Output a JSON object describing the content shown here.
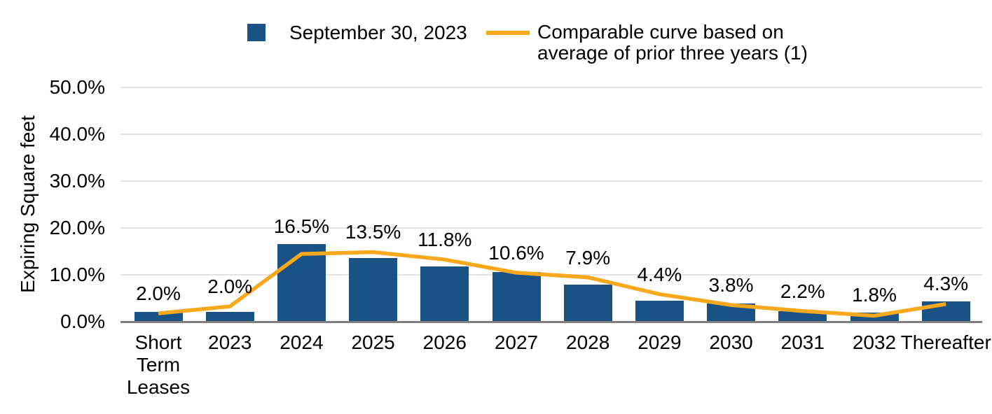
{
  "chart_data": {
    "type": "bar",
    "has_line_overlay": true,
    "title": "",
    "xlabel": "",
    "ylabel": "Expiring Square feet",
    "ylim": [
      0,
      50
    ],
    "grid": true,
    "legend_position": "top",
    "yticks": [
      {
        "value": 0,
        "label": "0.0%"
      },
      {
        "value": 10,
        "label": "10.0%"
      },
      {
        "value": 20,
        "label": "20.0%"
      },
      {
        "value": 30,
        "label": "30.0%"
      },
      {
        "value": 40,
        "label": "40.0%"
      },
      {
        "value": 50,
        "label": "50.0%"
      }
    ],
    "categories": [
      "Short Term Leases",
      "2023",
      "2024",
      "2025",
      "2026",
      "2027",
      "2028",
      "2029",
      "2030",
      "2031",
      "2032",
      "Thereafter"
    ],
    "category_label_lines": [
      [
        "Short",
        "Term",
        "Leases"
      ],
      [
        "2023"
      ],
      [
        "2024"
      ],
      [
        "2025"
      ],
      [
        "2026"
      ],
      [
        "2027"
      ],
      [
        "2028"
      ],
      [
        "2029"
      ],
      [
        "2030"
      ],
      [
        "2031"
      ],
      [
        "2032"
      ],
      [
        "Thereafter"
      ]
    ],
    "series": [
      {
        "name": "September 30, 2023",
        "type": "bar",
        "color": "#1A5285",
        "values": [
          2.0,
          2.0,
          16.5,
          13.5,
          11.8,
          10.6,
          7.9,
          4.4,
          3.8,
          2.2,
          1.8,
          4.3
        ],
        "data_labels": [
          "2.0%",
          "2.0%",
          "16.5%",
          "13.5%",
          "11.8%",
          "10.6%",
          "7.9%",
          "4.4%",
          "3.8%",
          "2.2%",
          "1.8%",
          "4.3%"
        ]
      },
      {
        "name": "Comparable curve based on average of prior three years (1)",
        "type": "line",
        "color": "#F8A81C",
        "values": [
          1.7,
          3.2,
          14.4,
          14.8,
          13.2,
          10.4,
          9.4,
          5.8,
          3.5,
          2.2,
          1.2,
          3.7
        ]
      }
    ]
  },
  "colors": {
    "bar": "#1A5285",
    "line": "#F8A81C",
    "gridline": "#E2E2E2",
    "axis_line": "#7F7F7F",
    "text": "#000000",
    "background": "#FFFFFF"
  }
}
